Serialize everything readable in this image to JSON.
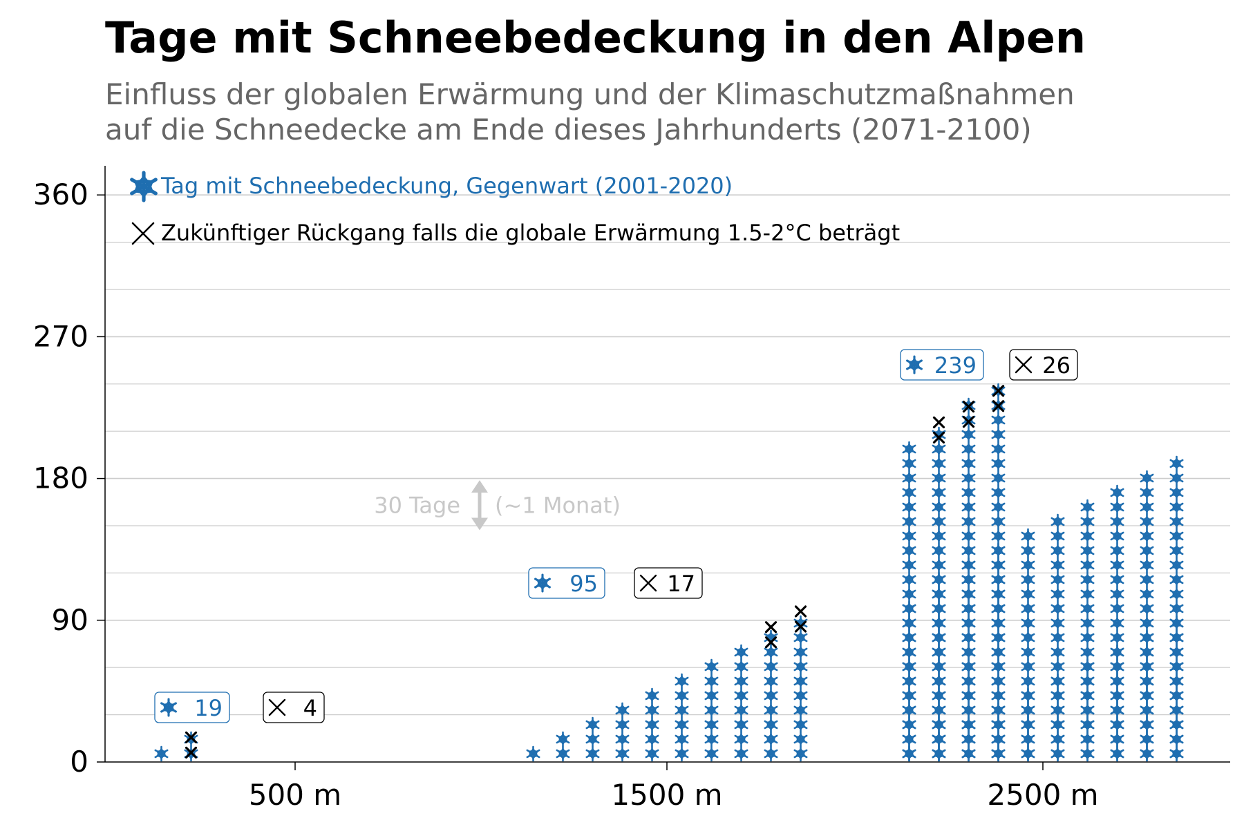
{
  "title": "Tage mit Schneebedeckung in den Alpen",
  "subtitle": {
    "line1": "Einfluss der globalen Erwärmung und der Klimaschutzmaßnahmen",
    "line2": "auf die Schneedecke am Ende dieses Jahrhunderts (2071-2100)"
  },
  "legend": {
    "present_label": "Tag mit Schneebedeckung, Gegenwart (2001-2020)",
    "future_label": "Zukünftiger Rückgang falls die globale Erwärmung 1.5-2°C beträgt",
    "present_icon": "snowflake-icon",
    "future_icon": "cross-icon"
  },
  "scale_annotation": {
    "left": "30 Tage",
    "right": "(~1 Monat)",
    "days": 30
  },
  "colors": {
    "snow": "#1f6eb0",
    "cross": "#000000",
    "grid": "#cccccc",
    "annotation": "#c8c8c8"
  },
  "chart_data": {
    "type": "pictogram-bar",
    "categories": [
      "500 m",
      "1500 m",
      "2500 m"
    ],
    "series": [
      {
        "name": "Tag mit Schneebedeckung, Gegenwart (2001-2020)",
        "values": [
          19,
          95,
          239
        ]
      },
      {
        "name": "Zukünftiger Rückgang falls die globale Erwärmung 1.5-2°C beträgt",
        "values": [
          4,
          17,
          26
        ]
      }
    ],
    "labels": {
      "present": [
        "19",
        "95",
        "239"
      ],
      "decline": [
        "4",
        "17",
        "26"
      ]
    },
    "units_per_icon": 10,
    "icons_per_column": 10,
    "yticks": [
      0,
      90,
      180,
      270,
      360
    ],
    "ylim": [
      0,
      380
    ],
    "grid": true
  }
}
